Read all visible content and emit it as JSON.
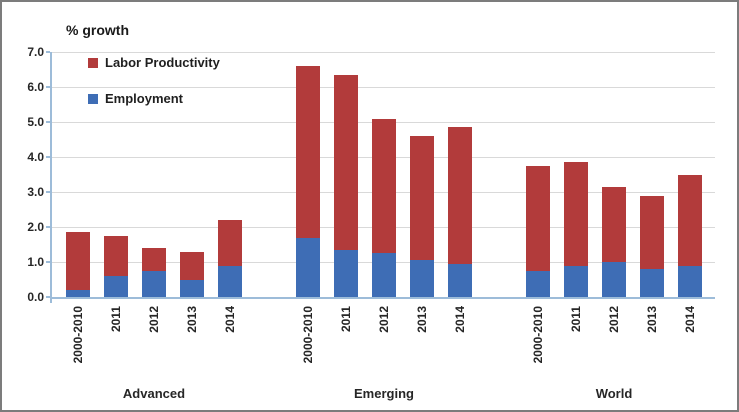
{
  "chart_data": {
    "type": "bar",
    "stacked": true,
    "title": "% growth",
    "xlabel": "",
    "ylabel": "",
    "ylim": [
      0,
      7
    ],
    "ytick_step": 1.0,
    "ytick_labels": [
      "7.0",
      "6.0",
      "5.0",
      "4.0",
      "3.0",
      "2.0",
      "1.0",
      "0.0"
    ],
    "grid": true,
    "legend_position": "top-left-inside",
    "categories": [
      "2000-2010",
      "2011",
      "2012",
      "2013",
      "2014"
    ],
    "series": [
      {
        "name": "Labor Productivity",
        "key": "labor_productivity",
        "color": "#b23b3b"
      },
      {
        "name": "Employment",
        "key": "employment",
        "color": "#3e6db5"
      }
    ],
    "groups": [
      {
        "label": "Advanced",
        "employment": [
          0.2,
          0.6,
          0.75,
          0.5,
          0.9
        ],
        "labor_productivity": [
          1.65,
          1.15,
          0.65,
          0.8,
          1.3
        ],
        "totals": [
          1.85,
          1.75,
          1.4,
          1.3,
          2.2
        ]
      },
      {
        "label": "Emerging",
        "employment": [
          1.7,
          1.35,
          1.25,
          1.05,
          0.95
        ],
        "labor_productivity": [
          4.9,
          5.0,
          3.85,
          3.55,
          3.9
        ],
        "totals": [
          6.6,
          6.35,
          5.1,
          4.6,
          4.85
        ]
      },
      {
        "label": "World",
        "employment": [
          0.75,
          0.9,
          1.0,
          0.8,
          0.9
        ],
        "labor_productivity": [
          3.0,
          2.95,
          2.15,
          2.1,
          2.6
        ],
        "totals": [
          3.75,
          3.85,
          3.15,
          2.9,
          3.5
        ]
      }
    ],
    "colors": {
      "labor_productivity": "#b23b3b",
      "employment": "#3e6db5",
      "axis_line": "#9dbcd9",
      "gridline": "#d9d9d9",
      "text": "#262626",
      "border": "#7c7c7c",
      "background": "#ffffff"
    }
  }
}
